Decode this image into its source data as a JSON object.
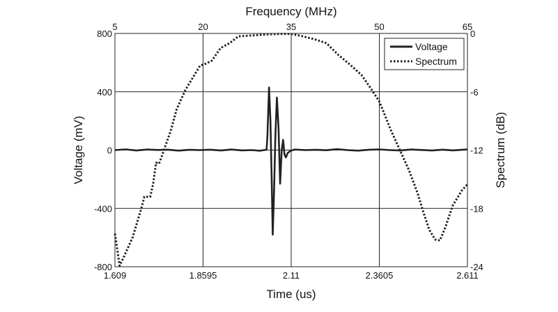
{
  "chart_data": {
    "type": "line",
    "title": "",
    "xlabel": "Time (us)",
    "ylabel": "Voltage (mV)",
    "x2label": "Frequency (MHz)",
    "y2label": "Spectrum (dB)",
    "xlim": [
      1.609,
      2.611
    ],
    "ylim": [
      -800,
      800
    ],
    "x2lim": [
      5,
      65
    ],
    "y2lim": [
      -24,
      0
    ],
    "xticks": [
      "1.609",
      "1.8595",
      "2.11",
      "2.3605",
      "2.611"
    ],
    "yticks": [
      "-800",
      "-400",
      "0",
      "400",
      "800"
    ],
    "x2ticks": [
      "5",
      "20",
      "35",
      "50",
      "65"
    ],
    "y2ticks": [
      "-24",
      "-18",
      "-12",
      "-6",
      "0"
    ],
    "grid": true,
    "legend_position": "top-right",
    "series": [
      {
        "name": "Voltage",
        "axis": "primary",
        "style": "solid",
        "points": [
          [
            1.609,
            0
          ],
          [
            1.64,
            5
          ],
          [
            1.67,
            -3
          ],
          [
            1.7,
            4
          ],
          [
            1.73,
            1
          ],
          [
            1.76,
            3
          ],
          [
            1.79,
            -4
          ],
          [
            1.82,
            2
          ],
          [
            1.85,
            0
          ],
          [
            1.88,
            3
          ],
          [
            1.91,
            -3
          ],
          [
            1.94,
            4
          ],
          [
            1.97,
            -2
          ],
          [
            2.0,
            0
          ],
          [
            2.02,
            -5
          ],
          [
            2.04,
            3
          ],
          [
            2.0425,
            100
          ],
          [
            2.047,
            430
          ],
          [
            2.051,
            200
          ],
          [
            2.0545,
            -200
          ],
          [
            2.0575,
            -580
          ],
          [
            2.061,
            -300
          ],
          [
            2.065,
            100
          ],
          [
            2.0695,
            360
          ],
          [
            2.074,
            150
          ],
          [
            2.0785,
            -230
          ],
          [
            2.083,
            0
          ],
          [
            2.087,
            70
          ],
          [
            2.091,
            -30
          ],
          [
            2.095,
            -50
          ],
          [
            2.1,
            -20
          ],
          [
            2.108,
            -5
          ],
          [
            2.12,
            4
          ],
          [
            2.15,
            0
          ],
          [
            2.18,
            2
          ],
          [
            2.21,
            -1
          ],
          [
            2.24,
            6
          ],
          [
            2.27,
            0
          ],
          [
            2.3,
            -4
          ],
          [
            2.33,
            2
          ],
          [
            2.36,
            5
          ],
          [
            2.39,
            0
          ],
          [
            2.42,
            -3
          ],
          [
            2.45,
            4
          ],
          [
            2.48,
            1
          ],
          [
            2.51,
            -3
          ],
          [
            2.54,
            3
          ],
          [
            2.57,
            -2
          ],
          [
            2.6,
            3
          ],
          [
            2.611,
            5
          ]
        ]
      },
      {
        "name": "Spectrum",
        "axis": "secondary",
        "style": "dotted",
        "points": [
          [
            5,
            -20.6
          ],
          [
            5.3,
            -21.8
          ],
          [
            5.8,
            -23.9
          ],
          [
            6.5,
            -23.0
          ],
          [
            8.0,
            -21.0
          ],
          [
            9.5,
            -18.0
          ],
          [
            10.0,
            -16.8
          ],
          [
            11.0,
            -16.8
          ],
          [
            11.5,
            -15.5
          ],
          [
            12.0,
            -13.3
          ],
          [
            12.5,
            -13.4
          ],
          [
            13.0,
            -12.6
          ],
          [
            14.5,
            -10.0
          ],
          [
            15.5,
            -7.8
          ],
          [
            17.0,
            -5.8
          ],
          [
            18.5,
            -4.3
          ],
          [
            19.5,
            -3.3
          ],
          [
            20.5,
            -3.1
          ],
          [
            21.5,
            -2.8
          ],
          [
            23.0,
            -1.5
          ],
          [
            24.5,
            -1.0
          ],
          [
            26.0,
            -0.3
          ],
          [
            28.5,
            -0.2
          ],
          [
            31.0,
            -0.1
          ],
          [
            33.0,
            -0.05
          ],
          [
            35.0,
            -0.05
          ],
          [
            37.0,
            -0.3
          ],
          [
            39.0,
            -0.6
          ],
          [
            41.0,
            -1.0
          ],
          [
            43.0,
            -2.2
          ],
          [
            45.0,
            -3.2
          ],
          [
            47.0,
            -4.3
          ],
          [
            48.5,
            -5.6
          ],
          [
            50.0,
            -7.0
          ],
          [
            52.0,
            -10.0
          ],
          [
            53.5,
            -12.0
          ],
          [
            55.0,
            -14.0
          ],
          [
            56.5,
            -16.4
          ],
          [
            57.5,
            -18.4
          ],
          [
            58.5,
            -20.2
          ],
          [
            59.5,
            -21.2
          ],
          [
            60.3,
            -21.3
          ],
          [
            61.2,
            -20.0
          ],
          [
            62.5,
            -17.7
          ],
          [
            64.0,
            -16.2
          ],
          [
            65.0,
            -15.5
          ]
        ]
      }
    ]
  }
}
